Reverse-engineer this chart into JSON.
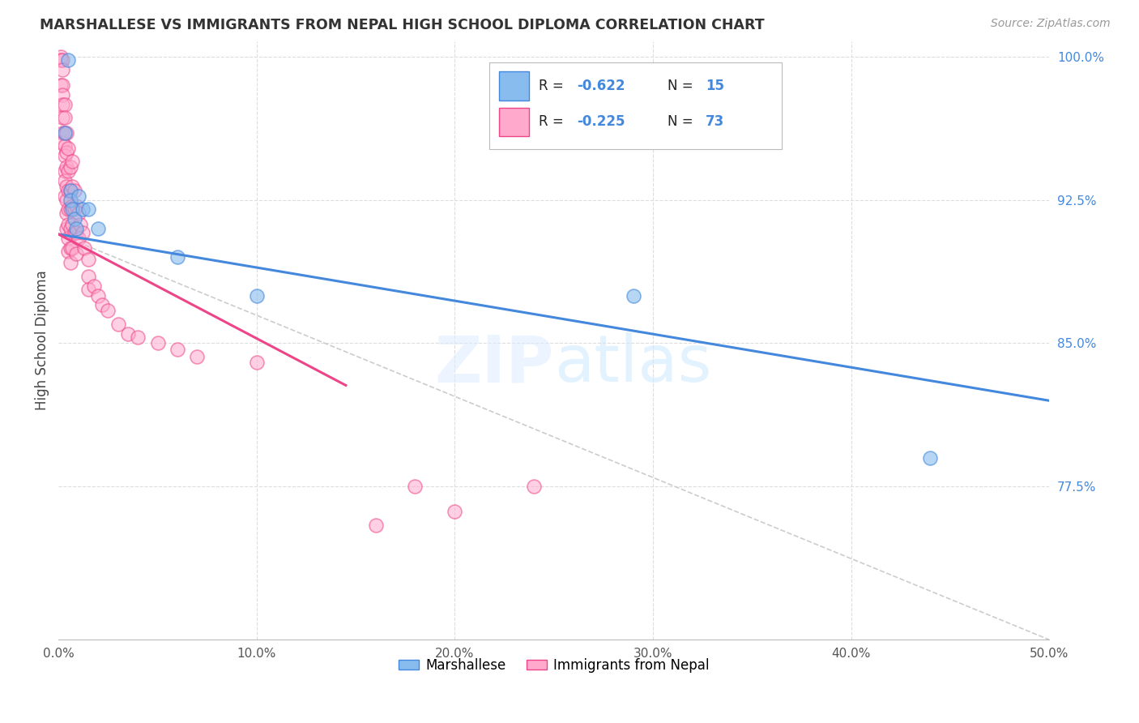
{
  "title": "MARSHALLESE VS IMMIGRANTS FROM NEPAL HIGH SCHOOL DIPLOMA CORRELATION CHART",
  "source": "Source: ZipAtlas.com",
  "ylabel": "High School Diploma",
  "xlim": [
    0.0,
    0.5
  ],
  "ylim": [
    0.695,
    1.008
  ],
  "blue_color": "#88BBEE",
  "pink_color": "#FFAACC",
  "blue_line_color": "#4488DD",
  "pink_line_color": "#EE4488",
  "watermark": "ZIPatlas",
  "blue_line": [
    [
      0.0,
      0.907
    ],
    [
      0.5,
      0.82
    ]
  ],
  "pink_line": [
    [
      0.0,
      0.907
    ],
    [
      0.145,
      0.828
    ]
  ],
  "dash_line": [
    [
      0.0,
      0.907
    ],
    [
      0.5,
      0.695
    ]
  ],
  "marshallese_points": [
    [
      0.003,
      0.96
    ],
    [
      0.005,
      0.998
    ],
    [
      0.006,
      0.93
    ],
    [
      0.006,
      0.925
    ],
    [
      0.007,
      0.92
    ],
    [
      0.008,
      0.915
    ],
    [
      0.009,
      0.91
    ],
    [
      0.01,
      0.927
    ],
    [
      0.012,
      0.92
    ],
    [
      0.015,
      0.92
    ],
    [
      0.02,
      0.91
    ],
    [
      0.06,
      0.895
    ],
    [
      0.1,
      0.875
    ],
    [
      0.29,
      0.875
    ],
    [
      0.44,
      0.79
    ]
  ],
  "nepal_points": [
    [
      0.001,
      1.0
    ],
    [
      0.001,
      0.998
    ],
    [
      0.001,
      0.985
    ],
    [
      0.002,
      0.998
    ],
    [
      0.002,
      0.993
    ],
    [
      0.002,
      0.985
    ],
    [
      0.002,
      0.98
    ],
    [
      0.002,
      0.975
    ],
    [
      0.002,
      0.968
    ],
    [
      0.002,
      0.96
    ],
    [
      0.002,
      0.955
    ],
    [
      0.003,
      0.975
    ],
    [
      0.003,
      0.968
    ],
    [
      0.003,
      0.96
    ],
    [
      0.003,
      0.953
    ],
    [
      0.003,
      0.948
    ],
    [
      0.003,
      0.94
    ],
    [
      0.003,
      0.935
    ],
    [
      0.003,
      0.927
    ],
    [
      0.004,
      0.96
    ],
    [
      0.004,
      0.95
    ],
    [
      0.004,
      0.942
    ],
    [
      0.004,
      0.932
    ],
    [
      0.004,
      0.925
    ],
    [
      0.004,
      0.918
    ],
    [
      0.004,
      0.91
    ],
    [
      0.005,
      0.952
    ],
    [
      0.005,
      0.94
    ],
    [
      0.005,
      0.93
    ],
    [
      0.005,
      0.92
    ],
    [
      0.005,
      0.912
    ],
    [
      0.005,
      0.905
    ],
    [
      0.005,
      0.898
    ],
    [
      0.006,
      0.942
    ],
    [
      0.006,
      0.93
    ],
    [
      0.006,
      0.92
    ],
    [
      0.006,
      0.91
    ],
    [
      0.006,
      0.9
    ],
    [
      0.006,
      0.892
    ],
    [
      0.007,
      0.945
    ],
    [
      0.007,
      0.932
    ],
    [
      0.007,
      0.922
    ],
    [
      0.007,
      0.912
    ],
    [
      0.007,
      0.9
    ],
    [
      0.008,
      0.93
    ],
    [
      0.008,
      0.92
    ],
    [
      0.008,
      0.908
    ],
    [
      0.009,
      0.922
    ],
    [
      0.009,
      0.908
    ],
    [
      0.009,
      0.897
    ],
    [
      0.01,
      0.918
    ],
    [
      0.01,
      0.905
    ],
    [
      0.011,
      0.912
    ],
    [
      0.012,
      0.908
    ],
    [
      0.013,
      0.9
    ],
    [
      0.015,
      0.894
    ],
    [
      0.015,
      0.885
    ],
    [
      0.015,
      0.878
    ],
    [
      0.018,
      0.88
    ],
    [
      0.02,
      0.875
    ],
    [
      0.022,
      0.87
    ],
    [
      0.025,
      0.867
    ],
    [
      0.03,
      0.86
    ],
    [
      0.035,
      0.855
    ],
    [
      0.04,
      0.853
    ],
    [
      0.05,
      0.85
    ],
    [
      0.06,
      0.847
    ],
    [
      0.07,
      0.843
    ],
    [
      0.1,
      0.84
    ],
    [
      0.16,
      0.755
    ],
    [
      0.18,
      0.775
    ],
    [
      0.2,
      0.762
    ],
    [
      0.24,
      0.775
    ]
  ]
}
